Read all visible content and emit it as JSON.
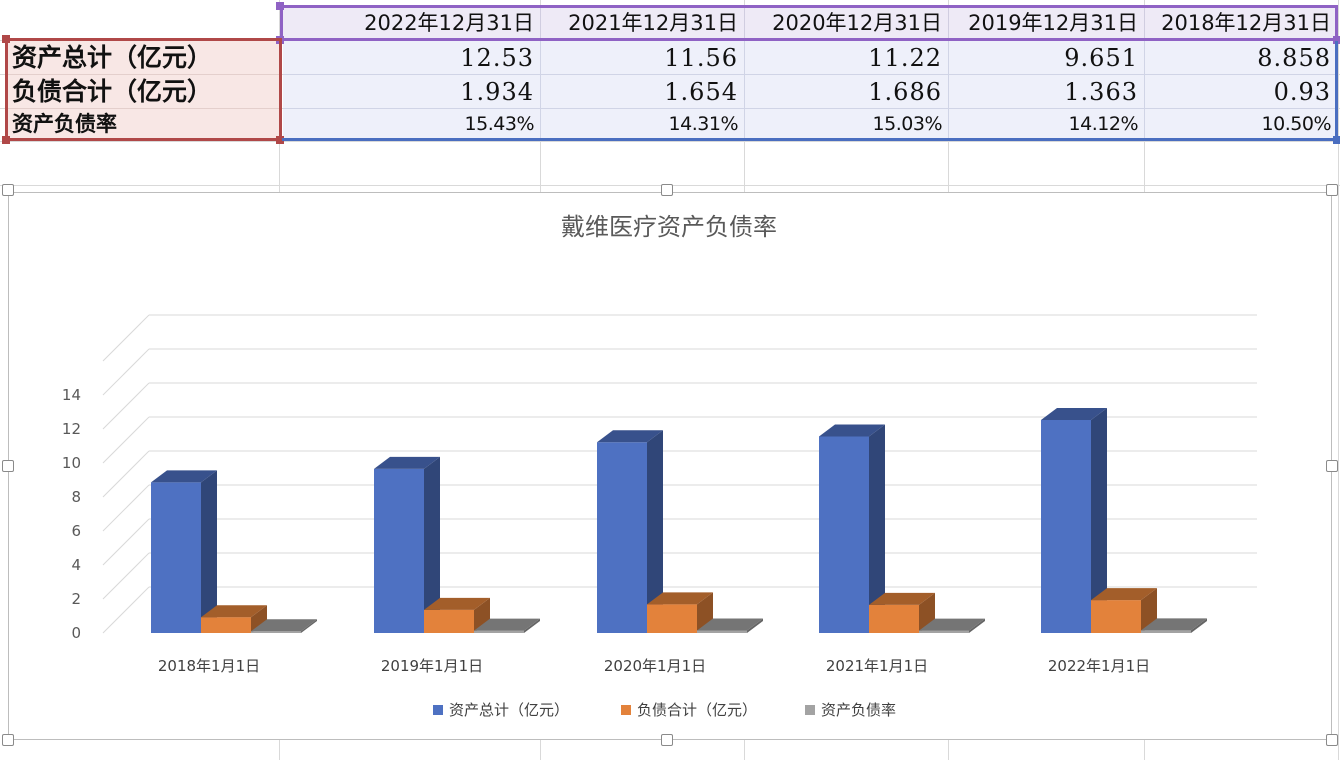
{
  "sheet": {
    "header_dates": [
      "2022年12月31日",
      "2021年12月31日",
      "2020年12月31日",
      "2019年12月31日",
      "2018年12月31日"
    ],
    "rows": [
      {
        "label": "资产总计（亿元）",
        "values": [
          "12.53",
          "11.56",
          "11.22",
          "9.651",
          "8.858"
        ]
      },
      {
        "label": "负债合计（亿元）",
        "values": [
          "1.934",
          "1.654",
          "1.686",
          "1.363",
          "0.93"
        ]
      },
      {
        "label": "资产负债率",
        "values": [
          "15.43%",
          "14.31%",
          "15.03%",
          "14.12%",
          "10.50%"
        ]
      }
    ]
  },
  "chart_data": {
    "type": "bar",
    "title": "戴维医疗资产负债率",
    "categories": [
      "2018年1月1日",
      "2019年1月1日",
      "2020年1月1日",
      "2021年1月1日",
      "2022年1月1日"
    ],
    "series": [
      {
        "name": "资产总计（亿元）",
        "values": [
          8.858,
          9.651,
          11.22,
          11.56,
          12.53
        ],
        "color": "#4e71c2"
      },
      {
        "name": "负债合计（亿元）",
        "values": [
          0.93,
          1.363,
          1.686,
          1.654,
          1.934
        ],
        "color": "#e3823b"
      },
      {
        "name": "资产负债率",
        "values": [
          0.105,
          0.1412,
          0.1503,
          0.1431,
          0.1543
        ],
        "color": "#a3a3a3"
      }
    ],
    "yticks": [
      "0",
      "2",
      "4",
      "6",
      "8",
      "10",
      "12",
      "14"
    ],
    "ylim": [
      0,
      14
    ],
    "grid": true,
    "legend_position": "bottom",
    "xlabel": "",
    "ylabel": ""
  }
}
